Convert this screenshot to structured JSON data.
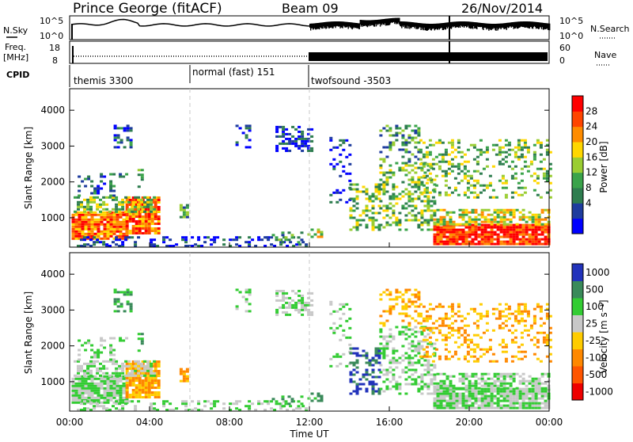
{
  "header": {
    "station": "Prince George (fitACF)",
    "beam": "Beam 09",
    "date": "26/Nov/2014"
  },
  "top_panels": {
    "nsky_label": "N.Sky",
    "nsky_ticks_left": [
      "10^5",
      "10^0"
    ],
    "nsearch_label": "N.Search",
    "nsearch_ticks_right": [
      "10^5",
      "10^0"
    ],
    "freq_label": "Freq.",
    "freq_unit": "[MHz]",
    "freq_ticks_left": [
      "18",
      "8"
    ],
    "nave_label": "Nave",
    "nave_ticks_right": [
      "60",
      "0"
    ],
    "cpid_label": "CPID",
    "cpid_segments": [
      {
        "name": "themis 3300"
      },
      {
        "name": "normal (fast) 151"
      },
      {
        "name": "twofsound -3503"
      }
    ]
  },
  "colors": {
    "power": [
      "#0000ff",
      "#1e3c9e",
      "#2e7d4f",
      "#3aa34a",
      "#9acd32",
      "#ffd700",
      "#ff8c00",
      "#ff4500",
      "#ff0000"
    ],
    "velocity": [
      "#2233bb",
      "#3a8a5a",
      "#33cc33",
      "#c8c8c8",
      "#ffcc00",
      "#ff8800",
      "#ff5500",
      "#ee0000"
    ]
  },
  "chart_data": [
    {
      "type": "heatmap",
      "name": "Power",
      "ylabel": "Slant Range [km]",
      "xlabel": "",
      "colorbar_label": "Power [dB]",
      "colorbar_ticks": [
        "28",
        "24",
        "20",
        "16",
        "12",
        "8",
        "4"
      ],
      "ylim": [
        180,
        4600
      ],
      "yticks": [
        "1000",
        "2000",
        "3000",
        "4000"
      ],
      "xlim_hours": [
        0,
        24
      ]
    },
    {
      "type": "heatmap",
      "name": "Velocity",
      "ylabel": "Slant Range [km]",
      "xlabel": "Time UT",
      "colorbar_label": "Velocity [m s⁻¹]",
      "colorbar_ticks": [
        "1000",
        "500",
        "100",
        "25",
        "-25",
        "-100",
        "-500",
        "-1000"
      ],
      "ylim": [
        180,
        4600
      ],
      "yticks": [
        "1000",
        "2000",
        "3000",
        "4000"
      ],
      "xticks": [
        "00:00",
        "04:00",
        "08:00",
        "12:00",
        "16:00",
        "20:00",
        "00:00"
      ]
    }
  ]
}
